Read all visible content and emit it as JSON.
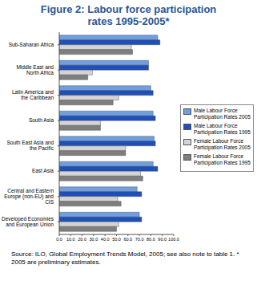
{
  "chart_data": {
    "type": "bar",
    "orientation": "horizontal",
    "title": "Figure 2: Labour force participation rates 1995-2005*",
    "source": "Source: ILO, Global Employment Trends Model, 2005; see also note to table 1.  * 2005 are preliminary estimates.",
    "categories": [
      "Sub-Saharan Africa",
      "Middle East and North Africa",
      "Latin America and the Caribbean",
      "South Asia",
      "South East Asia and the Pacific",
      "East Asia",
      "Central and Eastern Europe (non-EU) and CIS",
      "Developed Economies and European Union"
    ],
    "series": [
      {
        "name": "Male Labour Force Participation Rates 2005",
        "color": "#6f9fe0",
        "values": [
          86,
          78,
          80,
          82,
          83,
          82,
          68,
          70
        ]
      },
      {
        "name": "Male Labour Force Participation Rates 1995",
        "color": "#1f4fb8",
        "values": [
          88,
          78,
          82,
          84,
          84,
          86,
          72,
          72
        ]
      },
      {
        "name": "Female Labour Force Participation Rates 2005",
        "color": "#d4d4d4",
        "values": [
          63,
          29,
          52,
          36,
          58,
          71,
          51,
          52
        ]
      },
      {
        "name": "Female Labour Force Participation Rates 1995",
        "color": "#7f7f7f",
        "values": [
          64,
          25,
          47,
          36,
          58,
          73,
          54,
          50
        ]
      }
    ],
    "xlim": [
      0,
      100
    ],
    "xticks": [
      {
        "value": 0,
        "label": "0.0"
      },
      {
        "value": 10,
        "label": "10.0"
      },
      {
        "value": 20,
        "label": "20.0"
      },
      {
        "value": 30,
        "label": "30.0"
      },
      {
        "value": 40,
        "label": "40.0"
      },
      {
        "value": 50,
        "label": "50.0"
      },
      {
        "value": 60,
        "label": "60.0"
      },
      {
        "value": 70,
        "label": "70.0"
      },
      {
        "value": 80,
        "label": "80.0"
      },
      {
        "value": 90,
        "label": "90.0"
      },
      {
        "value": 100,
        "label": "100.0"
      }
    ],
    "grid": false,
    "legend": "right"
  }
}
